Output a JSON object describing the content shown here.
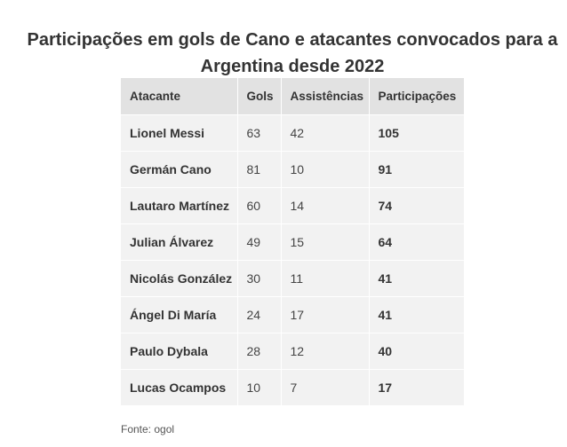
{
  "title": "Participações em gols de Cano e atacantes convocados para a Argentina desde 2022",
  "table": {
    "headers": [
      "Atacante",
      "Gols",
      "Assistências",
      "Participações"
    ],
    "rows": [
      [
        "Lionel Messi",
        "63",
        "42",
        "105"
      ],
      [
        "Germán Cano",
        "81",
        "10",
        "91"
      ],
      [
        "Lautaro Martínez",
        "60",
        "14",
        "74"
      ],
      [
        "Julian Álvarez",
        "49",
        "15",
        "64"
      ],
      [
        "Nicolás González",
        "30",
        "11",
        "41"
      ],
      [
        "Ángel Di María",
        "24",
        "17",
        "41"
      ],
      [
        "Paulo Dybala",
        "28",
        "12",
        "40"
      ],
      [
        "Lucas Ocampos",
        "10",
        "7",
        "17"
      ]
    ]
  },
  "source": "Fonte: ogol"
}
